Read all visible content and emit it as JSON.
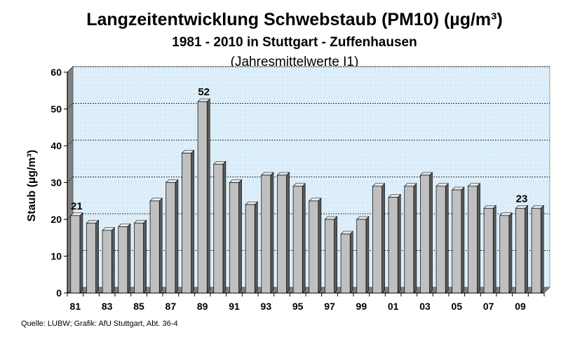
{
  "chart_data": {
    "type": "bar",
    "title": "Langzeitentwicklung Schwebstaub (PM10) (µg/m³)",
    "subtitle": "1981 - 2010 in Stuttgart - Zuffenhausen",
    "subtitle2": "(Jahresmittelwerte I1)",
    "ylabel": "Staub (µg/m³)",
    "xlabel": "",
    "ylim": [
      0,
      60
    ],
    "yticks": [
      "0",
      "10",
      "20",
      "30",
      "40",
      "50",
      "60"
    ],
    "categories": [
      "81",
      "82",
      "83",
      "84",
      "85",
      "86",
      "87",
      "88",
      "89",
      "90",
      "91",
      "92",
      "93",
      "94",
      "95",
      "96",
      "97",
      "98",
      "99",
      "00",
      "01",
      "02",
      "03",
      "04",
      "05",
      "06",
      "07",
      "08",
      "09",
      "10"
    ],
    "values": [
      21,
      19,
      17,
      18,
      19,
      25,
      30,
      38,
      52,
      35,
      30,
      24,
      32,
      32,
      29,
      25,
      20,
      16,
      20,
      29,
      26,
      29,
      32,
      29,
      28,
      29,
      23,
      21,
      23,
      23
    ],
    "xtick_labels": [
      "81",
      "83",
      "85",
      "87",
      "89",
      "91",
      "93",
      "95",
      "97",
      "99",
      "01",
      "03",
      "05",
      "07",
      "09"
    ],
    "data_labels": [
      {
        "category": "81",
        "text": "21"
      },
      {
        "category": "89",
        "text": "52"
      },
      {
        "category": "09",
        "text": "23"
      }
    ],
    "grid": true,
    "source": "Quelle: LUBW; Grafik: AfU Stuttgart, Abt. 36-4",
    "colors": {
      "bar": "#c0c0c0",
      "plot_bg": "#dceefa",
      "grid": "#000000"
    }
  }
}
